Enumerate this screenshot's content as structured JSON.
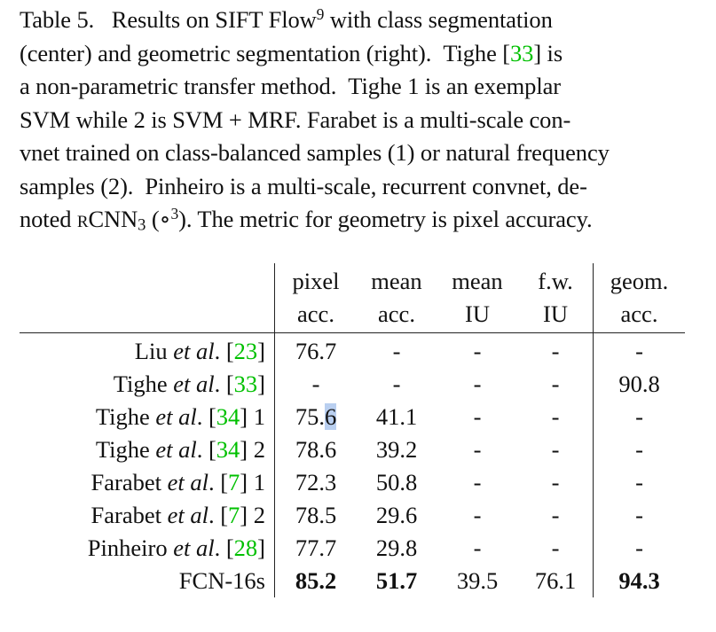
{
  "caption": {
    "l1_a": "Table 5.   Results on SIFT Flow",
    "l1_sup": "9",
    "l1_b": " with class segmentation",
    "l2_a": "(center) and geometric segmentation (right).  Tighe [",
    "l2_cite": "33",
    "l2_b": "] is",
    "l3": "a non-parametric transfer method.  Tighe 1 is an exemplar",
    "l4": "SVM while 2 is SVM + MRF. Farabet is a multi-scale con-",
    "l5": "vnet trained on class-balanced samples (1) or natural frequency",
    "l6": "samples (2).  Pinheiro is a multi-scale, recurrent convnet, de-",
    "l7_a": "noted ",
    "l7_sc": "rCNN",
    "l7_sub": "3",
    "l7_b": " (∘",
    "l7_sup": "3",
    "l7_c": "). The metric for geometry is pixel accuracy."
  },
  "table": {
    "headers_top": [
      "pixel",
      "mean",
      "mean",
      "f.w.",
      "geom."
    ],
    "headers_bottom": [
      "acc.",
      "acc.",
      "IU",
      "IU",
      "acc."
    ],
    "rows": [
      {
        "name": "Liu ",
        "etal": "et al",
        "dot": ". [",
        "cite": "23",
        "suffix": "]",
        "cells": [
          "76.7",
          "-",
          "-",
          "-",
          "-"
        ]
      },
      {
        "name": "Tighe ",
        "etal": "et al",
        "dot": ". [",
        "cite": "33",
        "suffix": "]",
        "cells": [
          "-",
          "-",
          "-",
          "-",
          "90.8"
        ]
      },
      {
        "name": "Tighe ",
        "etal": "et al",
        "dot": ". [",
        "cite": "34",
        "suffix": "] 1",
        "cells": [
          "75.6",
          "41.1",
          "-",
          "-",
          "-"
        ]
      },
      {
        "name": "Tighe ",
        "etal": "et al",
        "dot": ". [",
        "cite": "34",
        "suffix": "] 2",
        "cells": [
          "78.6",
          "39.2",
          "-",
          "-",
          "-"
        ]
      },
      {
        "name": "Farabet ",
        "etal": "et al",
        "dot": ". [",
        "cite": "7",
        "suffix": "] 1",
        "cells": [
          "72.3",
          "50.8",
          "-",
          "-",
          "-"
        ]
      },
      {
        "name": "Farabet ",
        "etal": "et al",
        "dot": ". [",
        "cite": "7",
        "suffix": "] 2",
        "cells": [
          "78.5",
          "29.6",
          "-",
          "-",
          "-"
        ]
      },
      {
        "name": "Pinheiro ",
        "etal": "et al",
        "dot": ". [",
        "cite": "28",
        "suffix": "]",
        "cells": [
          "77.7",
          "29.8",
          "-",
          "-",
          "-"
        ]
      }
    ],
    "final_row": {
      "name": "FCN-16s",
      "cells": [
        "85.2",
        "51.7",
        "39.5",
        "76.1",
        "94.3"
      ]
    },
    "highlight": {
      "before": "75.",
      "selected": "6"
    }
  },
  "colors": {
    "citation": "#00c000",
    "selection": "#b9cff0"
  }
}
